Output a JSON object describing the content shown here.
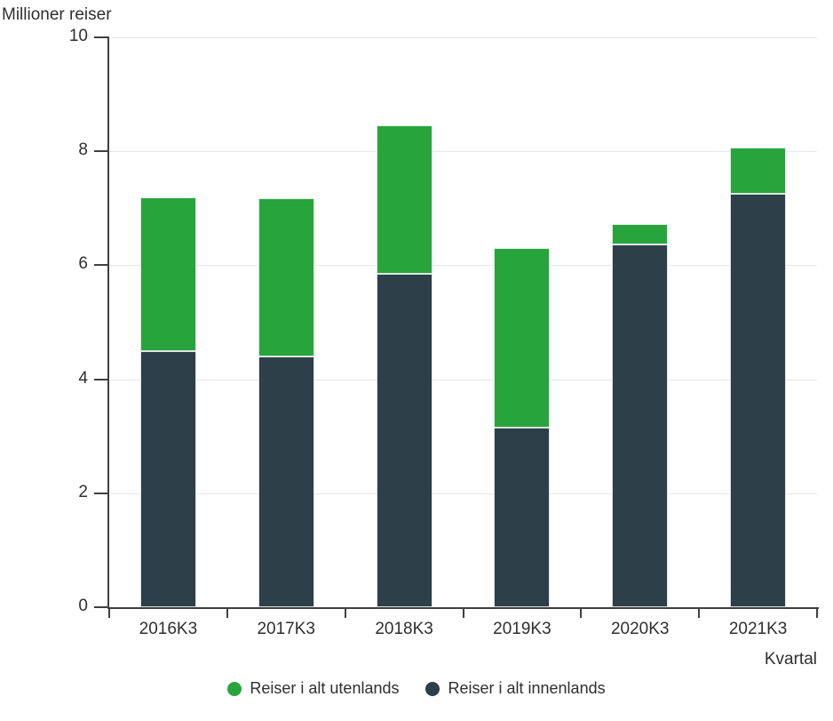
{
  "chart_data": {
    "type": "bar",
    "stacked": true,
    "title": "",
    "y_axis_title": "Millioner reiser",
    "x_axis_title": "Kvartal",
    "categories": [
      "2016K3",
      "2017K3",
      "2018K3",
      "2019K3",
      "2020K3",
      "2021K3"
    ],
    "series": [
      {
        "name": "Reiser i alt innenlands",
        "color": "#2d3f49",
        "values": [
          4.5,
          4.4,
          5.85,
          3.15,
          6.37,
          7.25
        ]
      },
      {
        "name": "Reiser i alt utenlands",
        "color": "#28a43d",
        "values": [
          2.7,
          2.78,
          2.6,
          3.15,
          0.35,
          0.82
        ]
      }
    ],
    "totals": [
      7.2,
      7.18,
      8.45,
      6.3,
      6.72,
      8.07
    ],
    "ylim": [
      0,
      10
    ],
    "y_ticks": [
      0,
      2,
      4,
      6,
      8,
      10
    ],
    "y_tick_labels": [
      "0",
      "2",
      "4",
      "6",
      "8",
      "10"
    ],
    "grid": true,
    "legend_position": "bottom",
    "legend": [
      {
        "label": "Reiser i alt utenlands",
        "color": "#28a43d",
        "series_key": "utenlands"
      },
      {
        "label": "Reiser i alt innenlands",
        "color": "#2d3f49",
        "series_key": "innenlands"
      }
    ]
  },
  "colors": {
    "axis": "#404040",
    "grid": "#e7e7e7",
    "text": "#2f2f2f",
    "background": "#ffffff",
    "utenlands_green": "#28a43d",
    "innenlands_dark": "#2d3f49"
  }
}
